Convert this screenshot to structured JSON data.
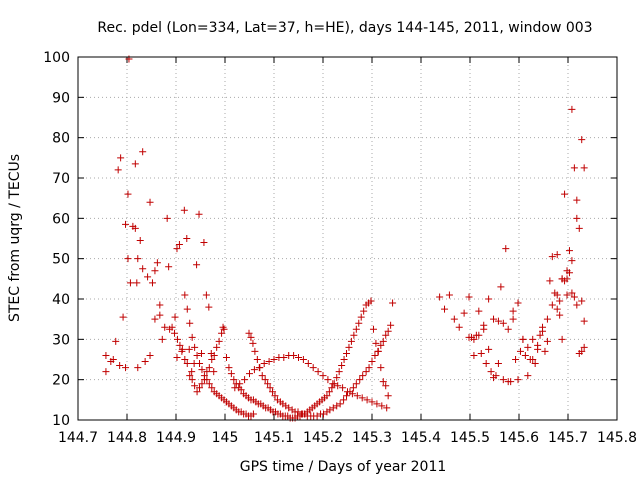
{
  "chart_data": {
    "type": "scatter",
    "title": "Rec. pdel (Lon=334, Lat=37, h=HE), days 144-145, 2011, window 003",
    "xlabel": "GPS time / Days of year 2011",
    "ylabel": "STEC from uqrg / TECUs",
    "xlim": [
      144.7,
      145.8
    ],
    "ylim": [
      10,
      100
    ],
    "xticks": [
      144.7,
      144.8,
      144.9,
      145,
      145.1,
      145.2,
      145.3,
      145.4,
      145.5,
      145.6,
      145.7,
      145.8
    ],
    "xtick_labels": [
      "144.7",
      "144.8",
      "144.9",
      "145",
      "145.1",
      "145.2",
      "145.3",
      "145.4",
      "145.5",
      "145.6",
      "145.7",
      "145.8"
    ],
    "yticks": [
      10,
      20,
      30,
      40,
      50,
      60,
      70,
      80,
      90,
      100
    ],
    "ytick_labels": [
      "10",
      "20",
      "30",
      "40",
      "50",
      "60",
      "70",
      "80",
      "90",
      "100"
    ],
    "grid": true,
    "legend": "none",
    "marker": "plus",
    "color": "#c00000",
    "series": [
      {
        "x": [
          144.757,
          144.757,
          144.767,
          144.772,
          144.777,
          144.782,
          144.785,
          144.787,
          144.792,
          144.797,
          144.797,
          144.802,
          144.802,
          144.804,
          144.807,
          144.812,
          144.817,
          144.817,
          144.82,
          144.822,
          144.822,
          144.827,
          144.832,
          144.832,
          144.837,
          144.842,
          144.847,
          144.847,
          144.852,
          144.857,
          144.857,
          144.862,
          144.867,
          144.867,
          144.872,
          144.877,
          144.882,
          144.885,
          144.887,
          144.892,
          144.897,
          144.902,
          144.902,
          144.907,
          144.912,
          144.917,
          144.922,
          144.927,
          144.932,
          144.937,
          144.942,
          144.947,
          144.952,
          144.957,
          144.962,
          144.967,
          144.972,
          144.977
        ],
        "y": [
          26,
          22,
          24.5,
          25,
          29.5,
          72,
          23.5,
          75,
          35.5,
          58.5,
          23,
          66,
          50,
          99.5,
          44,
          58,
          73.5,
          57.5,
          44,
          50,
          23,
          54.5,
          76.5,
          47.5,
          24.5,
          45.5,
          26,
          64,
          44,
          47,
          35,
          49,
          38.5,
          36,
          30,
          33,
          60,
          48,
          32.5,
          33,
          31.5,
          52.5,
          25.5,
          53.5,
          27,
          62,
          55,
          27.5,
          22,
          24,
          48.5,
          61,
          26.5,
          54,
          41,
          38,
          26.5,
          22
        ]
      },
      {
        "x": [
          144.898,
          144.903,
          144.908,
          144.913,
          144.918,
          144.923,
          144.928,
          144.933,
          144.938,
          144.943,
          144.948,
          144.953,
          144.958,
          144.963,
          144.968,
          144.973,
          144.978,
          144.983,
          144.988,
          144.993,
          144.996,
          144.998
        ],
        "y": [
          35.5,
          30,
          28.5,
          27.5,
          25,
          24,
          21,
          20,
          18.5,
          17,
          18,
          19,
          20,
          22,
          23,
          25,
          26,
          28,
          29.5,
          31.5,
          33,
          32.5
        ]
      },
      {
        "x": [
          144.918,
          144.923,
          144.928,
          144.933,
          144.938,
          144.943,
          144.948,
          144.953,
          144.958,
          144.963,
          144.968,
          144.973,
          144.978,
          144.983,
          144.988,
          144.993,
          144.998,
          145.003,
          145.008,
          145.013,
          145.018,
          145.023,
          145.028,
          145.033,
          145.038,
          145.043,
          145.048,
          145.053,
          145.058
        ],
        "y": [
          41,
          37.5,
          34,
          30.5,
          28,
          26,
          24,
          22.5,
          21,
          20,
          19,
          18,
          17,
          16.5,
          16,
          15.5,
          15,
          14.5,
          14,
          13.5,
          13,
          12.5,
          12,
          12,
          11.5,
          11.5,
          11,
          11,
          11.5
        ]
      },
      {
        "x": [
          145.003,
          145.008,
          145.013,
          145.018,
          145.023,
          145.028,
          145.033,
          145.038,
          145.043,
          145.048,
          145.053,
          145.058,
          145.063,
          145.068,
          145.073,
          145.078,
          145.083,
          145.088,
          145.093,
          145.098,
          145.103,
          145.108,
          145.113,
          145.118,
          145.123,
          145.128,
          145.133,
          145.138,
          145.143,
          145.148,
          145.153,
          145.158,
          145.163,
          145.168,
          145.173,
          145.178,
          145.183,
          145.188,
          145.193,
          145.198,
          145.203,
          145.208,
          145.213,
          145.218,
          145.223,
          145.228,
          145.233,
          145.238,
          145.243,
          145.248,
          145.253,
          145.258,
          145.263,
          145.268,
          145.273,
          145.278,
          145.283,
          145.288,
          145.293,
          145.298,
          145.303,
          145.308,
          145.313,
          145.318,
          145.323,
          145.328,
          145.333
        ],
        "y": [
          25.5,
          23,
          21.5,
          20,
          19,
          18,
          17.5,
          16.5,
          16,
          15.5,
          15,
          15,
          14.5,
          14,
          14,
          13.5,
          13,
          13,
          12.5,
          12,
          12,
          11.5,
          11.5,
          11,
          11,
          11,
          10.5,
          10.5,
          10.5,
          11,
          11,
          11.5,
          11.5,
          12,
          12.5,
          13,
          13.5,
          14,
          14.5,
          15,
          15.5,
          16,
          17,
          18,
          19,
          20.5,
          22,
          23.5,
          25,
          26.5,
          28,
          29.5,
          31,
          32.5,
          34,
          35.5,
          37,
          38.5,
          39,
          39.5,
          32.5,
          29,
          27,
          23,
          19.5,
          18.5,
          16
        ]
      },
      {
        "x": [
          145.02,
          145.03,
          145.04,
          145.05,
          145.06,
          145.07,
          145.08,
          145.09,
          145.1,
          145.11,
          145.12,
          145.13,
          145.14,
          145.15,
          145.16,
          145.17,
          145.18,
          145.19,
          145.2,
          145.21,
          145.22,
          145.23,
          145.24,
          145.25,
          145.26,
          145.27,
          145.28,
          145.29,
          145.3,
          145.31,
          145.32,
          145.33
        ],
        "y": [
          18,
          19,
          20,
          21.5,
          22.5,
          23,
          24,
          24.5,
          25,
          25.5,
          25.5,
          26,
          26,
          25.5,
          25,
          24,
          23,
          22,
          21,
          20,
          19,
          18.5,
          18,
          17,
          16.5,
          16,
          15.5,
          15,
          14.5,
          14,
          13.5,
          13
        ]
      },
      {
        "x": [
          145.049,
          145.053,
          145.057,
          145.061,
          145.066,
          145.071,
          145.076,
          145.082,
          145.087,
          145.092,
          145.097,
          145.102,
          145.107,
          145.113,
          145.118,
          145.124,
          145.13,
          145.137,
          145.143,
          145.149,
          145.156,
          145.162,
          145.168,
          145.175,
          145.181,
          145.188,
          145.195,
          145.201,
          145.208,
          145.214,
          145.221,
          145.228,
          145.235,
          145.242,
          145.248,
          145.255,
          145.262,
          145.268,
          145.275,
          145.281,
          145.288,
          145.294,
          145.3,
          145.306,
          145.312,
          145.318,
          145.323,
          145.328,
          145.333,
          145.338,
          145.342
        ],
        "y": [
          31.5,
          30.5,
          29,
          27,
          25,
          23,
          21,
          20,
          19,
          18,
          17,
          16,
          15,
          14.5,
          14,
          13.5,
          13,
          12.5,
          12,
          12,
          11.5,
          11.5,
          11,
          11,
          11,
          11,
          11.5,
          11.5,
          12,
          12.5,
          13,
          13.5,
          14,
          15,
          16,
          17,
          18,
          19,
          20,
          21,
          22,
          23,
          24.5,
          26,
          27,
          28.5,
          29.5,
          31,
          32,
          33.5,
          39
        ]
      },
      {
        "x": [
          145.438,
          145.448,
          145.458,
          145.468,
          145.478,
          145.488,
          145.498,
          145.508,
          145.518,
          145.528,
          145.538,
          145.548,
          145.558,
          145.568,
          145.578,
          145.588,
          145.598,
          145.608,
          145.618,
          145.628,
          145.638,
          145.648,
          145.658,
          145.668,
          145.678,
          145.688,
          145.698,
          145.708,
          145.718,
          145.728,
          145.733
        ],
        "y": [
          40.5,
          37.5,
          41,
          35,
          33,
          36.5,
          30.5,
          26,
          31,
          33.5,
          40,
          35,
          34.5,
          34,
          32.5,
          37,
          39,
          30,
          28,
          25,
          27.5,
          32,
          35,
          38.5,
          41,
          45,
          47,
          49.5,
          38.5,
          39.5,
          34.5
        ]
      },
      {
        "x": [
          145.498,
          145.503,
          145.508,
          145.513,
          145.518,
          145.523,
          145.528,
          145.533,
          145.538,
          145.543,
          145.548,
          145.553,
          145.558,
          145.563,
          145.568,
          145.573,
          145.578,
          145.583,
          145.588,
          145.593,
          145.598,
          145.603,
          145.608,
          145.613,
          145.618,
          145.623,
          145.628,
          145.633,
          145.638,
          145.643,
          145.648,
          145.653,
          145.658,
          145.663,
          145.668,
          145.673,
          145.678,
          145.683,
          145.688,
          145.693,
          145.698,
          145.703,
          145.708,
          145.713,
          145.718,
          145.723,
          145.728,
          145.733
        ],
        "y": [
          40.5,
          30.5,
          30,
          31,
          37,
          26.5,
          32.5,
          24,
          27.5,
          22,
          20.5,
          21,
          24,
          43,
          20,
          52.5,
          19.5,
          19.5,
          35,
          25,
          20,
          27,
          30,
          26,
          21,
          25,
          30,
          24,
          28.5,
          31,
          33,
          27,
          29.5,
          44.5,
          50.5,
          41.5,
          37.5,
          39.5,
          30,
          66,
          45,
          52,
          87,
          72.5,
          60,
          26.5,
          27,
          28
        ]
      },
      {
        "x": [
          145.678,
          145.683,
          145.688,
          145.693,
          145.698,
          145.703,
          145.708,
          145.713,
          145.718,
          145.723,
          145.728,
          145.733
        ],
        "y": [
          51,
          36,
          45,
          44.5,
          41,
          46.5,
          41.5,
          40.5,
          64.5,
          57.5,
          79.5,
          72.5
        ]
      }
    ]
  }
}
